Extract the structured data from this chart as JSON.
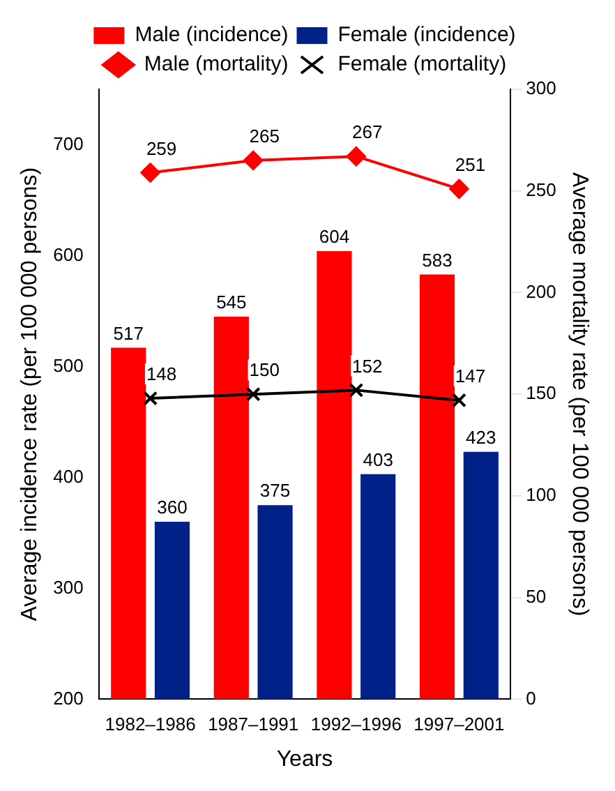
{
  "chart_data": {
    "type": "bar",
    "xlabel": "Years",
    "ylabel": "Average incidence rate (per 100 000 persons)",
    "y2label": "Average mortality rate (per 100 000 persons)",
    "categories": [
      "1982–1986",
      "1987–1991",
      "1992–1996",
      "1997–2001"
    ],
    "series": [
      {
        "name": "Male (incidence)",
        "color": "#ff0000",
        "values": [
          517,
          545,
          604,
          583
        ]
      },
      {
        "name": "Female (incidence)",
        "color": "#002288",
        "values": [
          360,
          375,
          403,
          423
        ]
      },
      {
        "name": "Male (mortality)",
        "type": "line",
        "axis": "y2",
        "marker": "diamond",
        "color": "#ff0000",
        "values": [
          259,
          265,
          267,
          251
        ]
      },
      {
        "name": "Female (mortality)",
        "type": "line",
        "axis": "y2",
        "marker": "cross",
        "color": "#000000",
        "values": [
          148,
          150,
          152,
          147
        ]
      }
    ],
    "ylim": [
      200,
      750
    ],
    "yticks": [
      200,
      300,
      400,
      500,
      600,
      700
    ],
    "y2lim": [
      0,
      300
    ],
    "y2ticks": [
      0,
      50,
      100,
      150,
      200,
      250,
      300
    ],
    "data_labels": true,
    "legend": "top",
    "grid": false
  }
}
